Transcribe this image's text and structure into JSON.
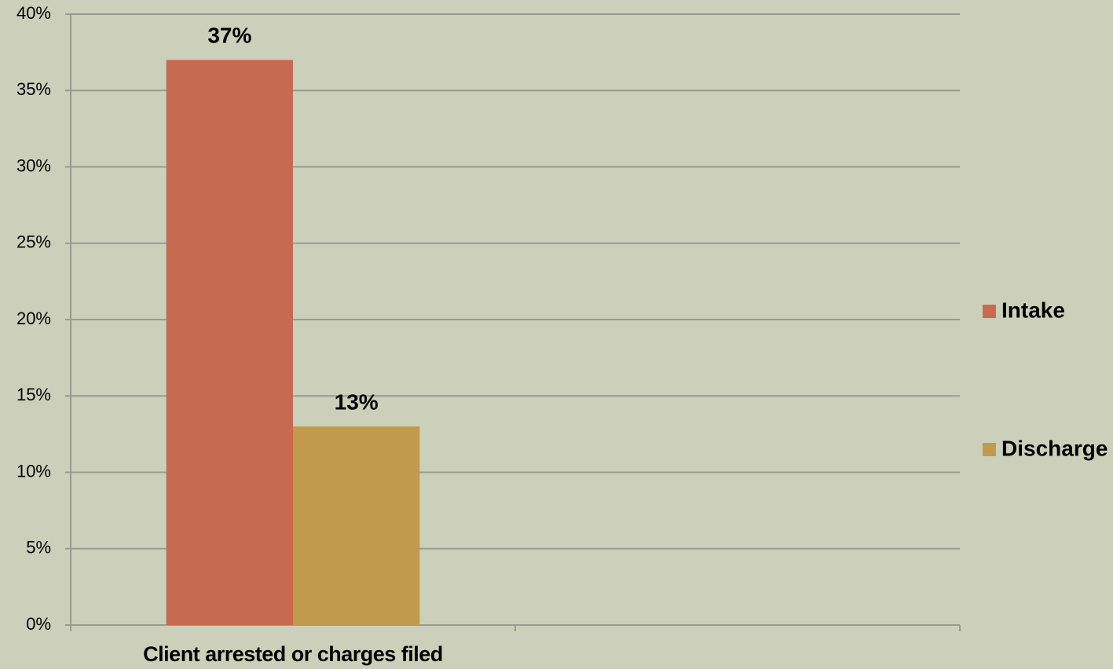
{
  "chart_data": {
    "type": "bar",
    "categories": [
      "Client arrested or charges filed",
      null
    ],
    "series": [
      {
        "name": "Intake",
        "color": "#c66a51",
        "values": [
          37,
          null
        ],
        "value_labels": [
          "37%",
          null
        ]
      },
      {
        "name": "Discharge",
        "color": "#c19a4e",
        "values": [
          13,
          null
        ],
        "value_labels": [
          "13%",
          null
        ]
      }
    ],
    "ylim": [
      0,
      40
    ],
    "yticks": [
      {
        "value": 0,
        "label": "0%"
      },
      {
        "value": 5,
        "label": "5%"
      },
      {
        "value": 10,
        "label": "10%"
      },
      {
        "value": 15,
        "label": "15%"
      },
      {
        "value": 20,
        "label": "20%"
      },
      {
        "value": 25,
        "label": "25%"
      },
      {
        "value": 30,
        "label": "30%"
      },
      {
        "value": 35,
        "label": "35%"
      },
      {
        "value": 40,
        "label": "40%"
      }
    ],
    "grid": true,
    "legend": "right"
  }
}
